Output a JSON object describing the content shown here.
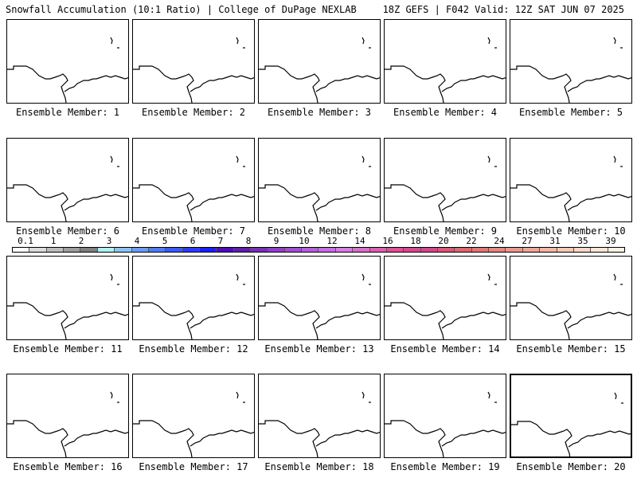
{
  "header": {
    "title_left": "Snowfall Accumulation (10:1 Ratio) | College of DuPage NEXLAB",
    "title_right": "18Z GEFS | F042 Valid: 12Z SAT JUN 07 2025"
  },
  "panels": [
    {
      "label": "Ensemble Member: 1"
    },
    {
      "label": "Ensemble Member: 2"
    },
    {
      "label": "Ensemble Member: 3"
    },
    {
      "label": "Ensemble Member: 4"
    },
    {
      "label": "Ensemble Member: 5"
    },
    {
      "label": "Ensemble Member: 6"
    },
    {
      "label": "Ensemble Member: 7"
    },
    {
      "label": "Ensemble Member: 8"
    },
    {
      "label": "Ensemble Member: 9"
    },
    {
      "label": "Ensemble Member: 10"
    },
    {
      "label": "Ensemble Member: 11"
    },
    {
      "label": "Ensemble Member: 12"
    },
    {
      "label": "Ensemble Member: 13"
    },
    {
      "label": "Ensemble Member: 14"
    },
    {
      "label": "Ensemble Member: 15"
    },
    {
      "label": "Ensemble Member: 16"
    },
    {
      "label": "Ensemble Member: 17"
    },
    {
      "label": "Ensemble Member: 18"
    },
    {
      "label": "Ensemble Member: 19"
    },
    {
      "label": "Ensemble Member: 20"
    }
  ],
  "colorbar": {
    "tick_labels": [
      "0.1",
      "1",
      "2",
      "3",
      "4",
      "5",
      "6",
      "7",
      "8",
      "9",
      "10",
      "12",
      "14",
      "16",
      "18",
      "20",
      "22",
      "24",
      "27",
      "31",
      "35",
      "39"
    ],
    "colors": [
      "#ffffff",
      "#dcdcdc",
      "#bdbdbd",
      "#9e9e9e",
      "#7f7f7f",
      "#b0f0f0",
      "#8ec4f0",
      "#6a9ff0",
      "#4f7cf0",
      "#3a5cf0",
      "#2e3cf0",
      "#1f1ff0",
      "#4a0fb8",
      "#5f1fa8",
      "#7a2fb8",
      "#8f3fc8",
      "#9f4fd0",
      "#b45fd8",
      "#c56fe0",
      "#d480e0",
      "#d870c8",
      "#dc60b0",
      "#e05098",
      "#d84890",
      "#d44888",
      "#d85878",
      "#dc6870",
      "#e07878",
      "#e48880",
      "#e89890",
      "#eca898",
      "#f0b8a8",
      "#f4c8b8",
      "#f8d8c8",
      "#fbe6d8",
      "#fdf0e4"
    ]
  },
  "selected_panel": "Ensemble Member: 20"
}
